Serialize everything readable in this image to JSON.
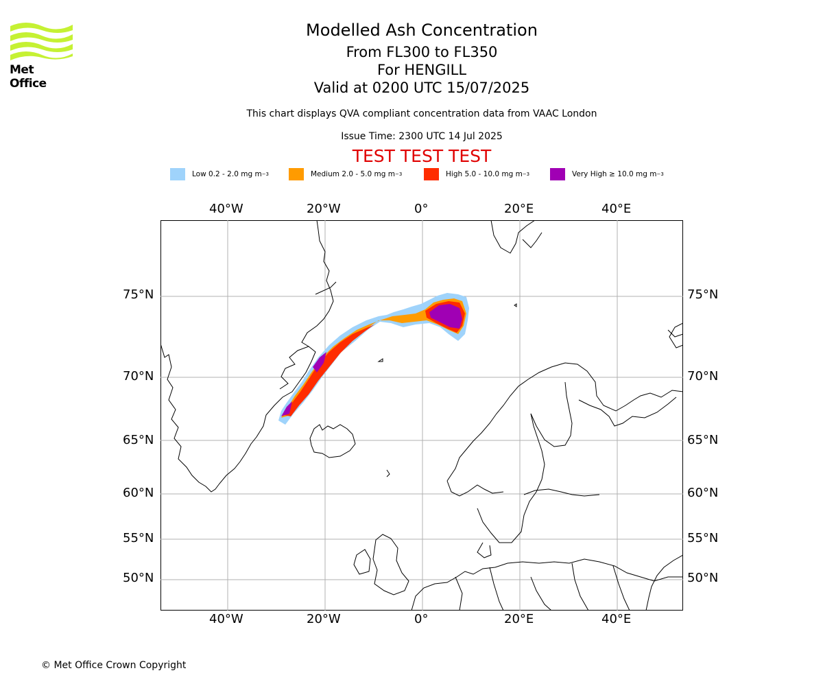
{
  "header": {
    "title": "Modelled Ash Concentration",
    "level_range": "From FL300 to FL350",
    "volcano": "For HENGILL",
    "valid_time": "Valid at 0200 UTC 15/07/2025",
    "subtitle": "This chart displays QVA compliant concentration data from VAAC London",
    "issue_time": "Issue Time: 2300 UTC 14 Jul 2025",
    "test_banner": "TEST TEST TEST"
  },
  "logo": {
    "text": "Met Office",
    "icon": "met-office-waves-logo"
  },
  "legend": [
    {
      "label": "Low 0.2 - 2.0 mg m",
      "color": "#9fd3fb"
    },
    {
      "label": "Medium 2.0 - 5.0 mg m",
      "color": "#ff9b00"
    },
    {
      "label": "High 5.0 - 10.0 mg m",
      "color": "#ff2c00"
    },
    {
      "label": "Very High ≥ 10.0 mg m",
      "color": "#a000b4"
    }
  ],
  "legend_unit_exponent": "−3",
  "map": {
    "lon_labels": [
      "40°W",
      "20°W",
      "0°",
      "20°E",
      "40°E"
    ],
    "lat_labels": [
      "75°N",
      "70°N",
      "65°N",
      "60°N",
      "55°N",
      "50°N"
    ],
    "grid": true
  },
  "footer": {
    "copyright": "© Met Office Crown Copyright"
  }
}
